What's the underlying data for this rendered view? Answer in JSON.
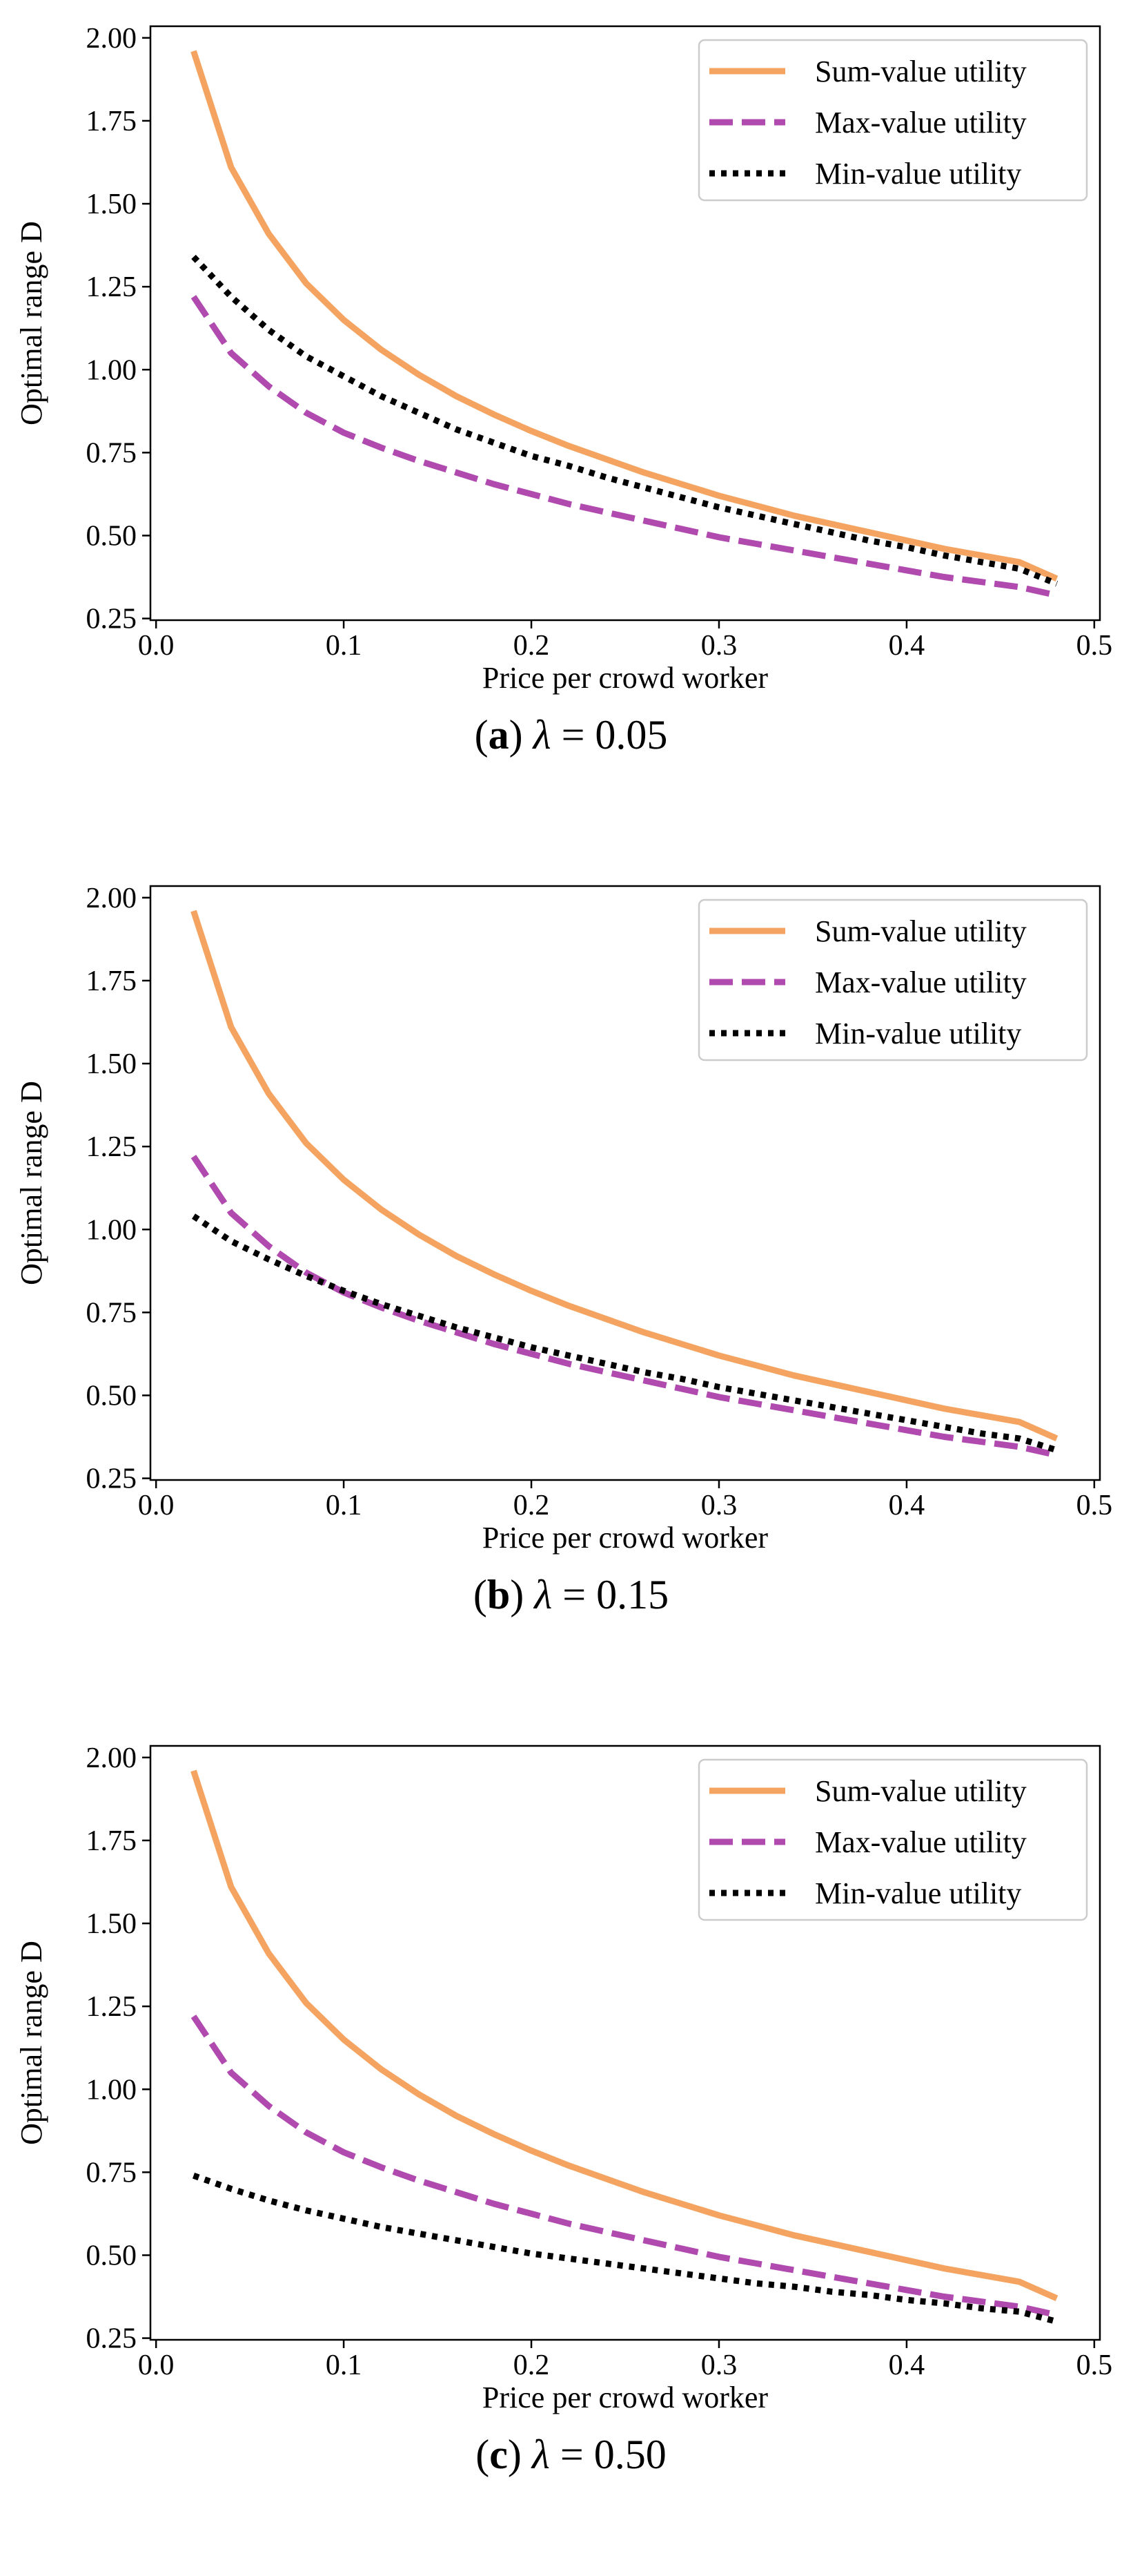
{
  "chart_data": [
    {
      "type": "line",
      "caption": {
        "letter": "a",
        "symbol": "λ",
        "equals": "=",
        "value": "0.05"
      },
      "xlabel": "Price per crowd worker",
      "ylabel": "Optimal range D",
      "xlim": [
        -0.003,
        0.503
      ],
      "ylim": [
        0.245,
        2.035
      ],
      "xticks": [
        0.0,
        0.1,
        0.2,
        0.3,
        0.4,
        0.5
      ],
      "xtick_labels": [
        "0.0",
        "0.1",
        "0.2",
        "0.3",
        "0.4",
        "0.5"
      ],
      "yticks": [
        0.25,
        0.5,
        0.75,
        1.0,
        1.25,
        1.5,
        1.75,
        2.0
      ],
      "ytick_labels": [
        "0.25",
        "0.50",
        "0.75",
        "1.00",
        "1.25",
        "1.50",
        "1.75",
        "2.00"
      ],
      "legend_position": "top-right",
      "x": [
        0.02,
        0.04,
        0.06,
        0.08,
        0.1,
        0.12,
        0.14,
        0.16,
        0.18,
        0.2,
        0.22,
        0.24,
        0.26,
        0.28,
        0.3,
        0.32,
        0.34,
        0.36,
        0.38,
        0.4,
        0.42,
        0.44,
        0.46,
        0.48
      ],
      "series": [
        {
          "name": "Sum-value utility",
          "style": "solid",
          "color": "#f4a460",
          "values": [
            1.96,
            1.61,
            1.41,
            1.26,
            1.15,
            1.06,
            0.985,
            0.92,
            0.865,
            0.815,
            0.77,
            0.73,
            0.69,
            0.655,
            0.62,
            0.59,
            0.56,
            0.535,
            0.51,
            0.485,
            0.46,
            0.44,
            0.42,
            0.37
          ]
        },
        {
          "name": "Max-value utility",
          "style": "dashed",
          "color": "#b04aaf",
          "values": [
            1.22,
            1.05,
            0.95,
            0.87,
            0.81,
            0.765,
            0.725,
            0.69,
            0.655,
            0.625,
            0.595,
            0.57,
            0.545,
            0.52,
            0.495,
            0.475,
            0.455,
            0.435,
            0.415,
            0.395,
            0.375,
            0.36,
            0.345,
            0.32
          ]
        },
        {
          "name": "Min-value utility",
          "style": "dotted",
          "color": "#000000",
          "values": [
            1.34,
            1.22,
            1.12,
            1.04,
            0.98,
            0.92,
            0.87,
            0.82,
            0.78,
            0.74,
            0.71,
            0.675,
            0.645,
            0.615,
            0.585,
            0.56,
            0.535,
            0.51,
            0.485,
            0.465,
            0.44,
            0.42,
            0.4,
            0.355
          ]
        }
      ]
    },
    {
      "type": "line",
      "caption": {
        "letter": "b",
        "symbol": "λ",
        "equals": "=",
        "value": "0.15"
      },
      "xlabel": "Price per crowd worker",
      "ylabel": "Optimal range D",
      "xlim": [
        -0.003,
        0.503
      ],
      "ylim": [
        0.245,
        2.035
      ],
      "xticks": [
        0.0,
        0.1,
        0.2,
        0.3,
        0.4,
        0.5
      ],
      "xtick_labels": [
        "0.0",
        "0.1",
        "0.2",
        "0.3",
        "0.4",
        "0.5"
      ],
      "yticks": [
        0.25,
        0.5,
        0.75,
        1.0,
        1.25,
        1.5,
        1.75,
        2.0
      ],
      "ytick_labels": [
        "0.25",
        "0.50",
        "0.75",
        "1.00",
        "1.25",
        "1.50",
        "1.75",
        "2.00"
      ],
      "legend_position": "top-right",
      "x": [
        0.02,
        0.04,
        0.06,
        0.08,
        0.1,
        0.12,
        0.14,
        0.16,
        0.18,
        0.2,
        0.22,
        0.24,
        0.26,
        0.28,
        0.3,
        0.32,
        0.34,
        0.36,
        0.38,
        0.4,
        0.42,
        0.44,
        0.46,
        0.48
      ],
      "series": [
        {
          "name": "Sum-value utility",
          "style": "solid",
          "color": "#f4a460",
          "values": [
            1.96,
            1.61,
            1.41,
            1.26,
            1.15,
            1.06,
            0.985,
            0.92,
            0.865,
            0.815,
            0.77,
            0.73,
            0.69,
            0.655,
            0.62,
            0.59,
            0.56,
            0.535,
            0.51,
            0.485,
            0.46,
            0.44,
            0.42,
            0.37
          ]
        },
        {
          "name": "Max-value utility",
          "style": "dashed",
          "color": "#b04aaf",
          "values": [
            1.22,
            1.05,
            0.95,
            0.87,
            0.81,
            0.765,
            0.725,
            0.69,
            0.655,
            0.625,
            0.595,
            0.57,
            0.545,
            0.52,
            0.495,
            0.475,
            0.455,
            0.435,
            0.415,
            0.395,
            0.375,
            0.36,
            0.345,
            0.32
          ]
        },
        {
          "name": "Min-value utility",
          "style": "dotted",
          "color": "#000000",
          "values": [
            1.04,
            0.965,
            0.91,
            0.86,
            0.815,
            0.775,
            0.74,
            0.705,
            0.675,
            0.645,
            0.62,
            0.595,
            0.57,
            0.55,
            0.525,
            0.505,
            0.485,
            0.465,
            0.445,
            0.425,
            0.405,
            0.385,
            0.37,
            0.335
          ]
        }
      ]
    },
    {
      "type": "line",
      "caption": {
        "letter": "c",
        "symbol": "λ",
        "equals": "=",
        "value": "0.50"
      },
      "xlabel": "Price per crowd worker",
      "ylabel": "Optimal range D",
      "xlim": [
        -0.003,
        0.503
      ],
      "ylim": [
        0.245,
        2.035
      ],
      "xticks": [
        0.0,
        0.1,
        0.2,
        0.3,
        0.4,
        0.5
      ],
      "xtick_labels": [
        "0.0",
        "0.1",
        "0.2",
        "0.3",
        "0.4",
        "0.5"
      ],
      "yticks": [
        0.25,
        0.5,
        0.75,
        1.0,
        1.25,
        1.5,
        1.75,
        2.0
      ],
      "ytick_labels": [
        "0.25",
        "0.50",
        "0.75",
        "1.00",
        "1.25",
        "1.50",
        "1.75",
        "2.00"
      ],
      "legend_position": "top-right",
      "x": [
        0.02,
        0.04,
        0.06,
        0.08,
        0.1,
        0.12,
        0.14,
        0.16,
        0.18,
        0.2,
        0.22,
        0.24,
        0.26,
        0.28,
        0.3,
        0.32,
        0.34,
        0.36,
        0.38,
        0.4,
        0.42,
        0.44,
        0.46,
        0.48
      ],
      "series": [
        {
          "name": "Sum-value utility",
          "style": "solid",
          "color": "#f4a460",
          "values": [
            1.96,
            1.61,
            1.41,
            1.26,
            1.15,
            1.06,
            0.985,
            0.92,
            0.865,
            0.815,
            0.77,
            0.73,
            0.69,
            0.655,
            0.62,
            0.59,
            0.56,
            0.535,
            0.51,
            0.485,
            0.46,
            0.44,
            0.42,
            0.37
          ]
        },
        {
          "name": "Max-value utility",
          "style": "dashed",
          "color": "#b04aaf",
          "values": [
            1.22,
            1.05,
            0.95,
            0.87,
            0.81,
            0.765,
            0.725,
            0.69,
            0.655,
            0.625,
            0.595,
            0.57,
            0.545,
            0.52,
            0.495,
            0.475,
            0.455,
            0.435,
            0.415,
            0.395,
            0.375,
            0.36,
            0.345,
            0.32
          ]
        },
        {
          "name": "Min-value utility",
          "style": "dotted",
          "color": "#000000",
          "values": [
            0.74,
            0.7,
            0.665,
            0.635,
            0.61,
            0.585,
            0.565,
            0.545,
            0.525,
            0.505,
            0.49,
            0.475,
            0.46,
            0.445,
            0.43,
            0.415,
            0.405,
            0.39,
            0.38,
            0.365,
            0.355,
            0.34,
            0.33,
            0.3
          ]
        }
      ]
    }
  ]
}
